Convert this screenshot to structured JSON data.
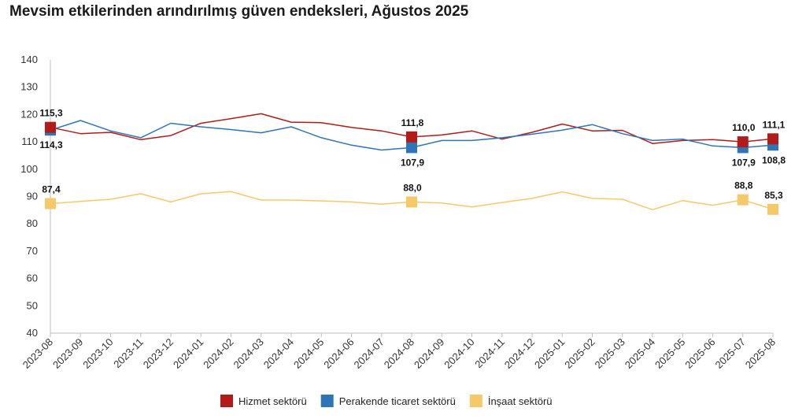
{
  "chart_data": {
    "type": "line",
    "title": "Mevsim etkilerinden arındırılmış güven endeksleri, Ağustos 2025",
    "xlabel": "",
    "ylabel": "",
    "ylim": [
      40,
      140
    ],
    "yticks": [
      40,
      50,
      60,
      70,
      80,
      90,
      100,
      110,
      120,
      130,
      140
    ],
    "grid": false,
    "legend_position": "bottom",
    "categories": [
      "2023-08",
      "2023-09",
      "2023-10",
      "2023-11",
      "2023-12",
      "2024-01",
      "2024-02",
      "2024-03",
      "2024-04",
      "2024-05",
      "2024-06",
      "2024-07",
      "2024-08",
      "2024-09",
      "2024-10",
      "2024-11",
      "2024-12",
      "2025-01",
      "2025-02",
      "2025-03",
      "2025-04",
      "2025-05",
      "2025-06",
      "2025-07",
      "2025-08"
    ],
    "series": [
      {
        "name": "Hizmet sektörü",
        "color": "#b31b1b",
        "values": [
          115.3,
          113.0,
          113.5,
          110.8,
          112.3,
          116.8,
          118.5,
          120.3,
          117.2,
          117.0,
          115.3,
          114.0,
          111.8,
          112.5,
          114.0,
          111.0,
          113.5,
          116.5,
          114.0,
          114.2,
          109.4,
          110.5,
          110.8,
          110.0,
          111.1
        ],
        "labels": [
          {
            "index": 0,
            "text": "115,3",
            "pos": "above"
          },
          {
            "index": 12,
            "text": "111,8",
            "pos": "above"
          },
          {
            "index": 23,
            "text": "110,0",
            "pos": "above"
          },
          {
            "index": 24,
            "text": "111,1",
            "pos": "above"
          }
        ]
      },
      {
        "name": "Perakende ticaret sektörü",
        "color": "#2e75b6",
        "values": [
          114.3,
          117.8,
          114.0,
          111.5,
          116.8,
          115.5,
          114.5,
          113.3,
          115.5,
          111.5,
          108.8,
          107.0,
          107.9,
          110.5,
          110.5,
          111.5,
          112.8,
          114.3,
          116.3,
          113.0,
          110.5,
          111.0,
          108.5,
          107.9,
          108.8
        ],
        "labels": [
          {
            "index": 0,
            "text": "114,3",
            "pos": "below"
          },
          {
            "index": 12,
            "text": "107,9",
            "pos": "below"
          },
          {
            "index": 23,
            "text": "107,9",
            "pos": "below"
          },
          {
            "index": 24,
            "text": "108,8",
            "pos": "below"
          }
        ]
      },
      {
        "name": "İnşaat sektörü",
        "color": "#f5c96a",
        "values": [
          87.4,
          88.2,
          89.0,
          91.0,
          88.0,
          91.0,
          91.8,
          88.7,
          88.7,
          88.4,
          88.0,
          87.2,
          88.0,
          87.6,
          86.2,
          87.8,
          89.3,
          91.7,
          89.3,
          89.0,
          85.2,
          88.5,
          86.8,
          88.8,
          85.3
        ],
        "labels": [
          {
            "index": 0,
            "text": "87,4",
            "pos": "above"
          },
          {
            "index": 12,
            "text": "88,0",
            "pos": "above"
          },
          {
            "index": 23,
            "text": "88,8",
            "pos": "above"
          },
          {
            "index": 24,
            "text": "85,3",
            "pos": "above"
          }
        ]
      }
    ]
  }
}
